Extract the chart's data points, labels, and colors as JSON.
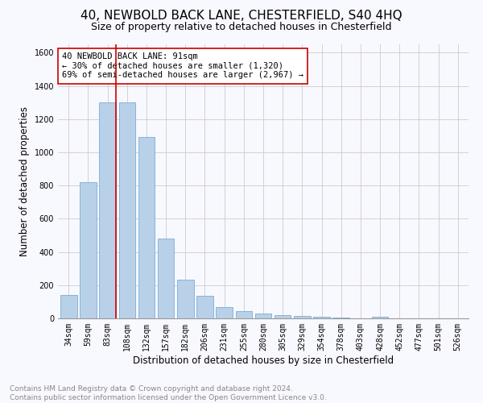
{
  "title": "40, NEWBOLD BACK LANE, CHESTERFIELD, S40 4HQ",
  "subtitle": "Size of property relative to detached houses in Chesterfield",
  "xlabel": "Distribution of detached houses by size in Chesterfield",
  "ylabel": "Number of detached properties",
  "bar_color": "#b8d0e8",
  "bar_edge_color": "#7aaed4",
  "categories": [
    "34sqm",
    "59sqm",
    "83sqm",
    "108sqm",
    "132sqm",
    "157sqm",
    "182sqm",
    "206sqm",
    "231sqm",
    "255sqm",
    "280sqm",
    "305sqm",
    "329sqm",
    "354sqm",
    "378sqm",
    "403sqm",
    "428sqm",
    "452sqm",
    "477sqm",
    "501sqm",
    "526sqm"
  ],
  "values": [
    140,
    820,
    1300,
    1300,
    1090,
    480,
    235,
    135,
    70,
    45,
    30,
    20,
    15,
    10,
    5,
    0,
    8,
    0,
    0,
    0,
    0
  ],
  "ylim": [
    0,
    1650
  ],
  "yticks": [
    0,
    200,
    400,
    600,
    800,
    1000,
    1200,
    1400,
    1600
  ],
  "vline_color": "#cc0000",
  "vline_x_index": 2,
  "annotation_text": "40 NEWBOLD BACK LANE: 91sqm\n← 30% of detached houses are smaller (1,320)\n69% of semi-detached houses are larger (2,967) →",
  "annotation_box_color": "#ffffff",
  "annotation_box_edge": "#cc0000",
  "footnote": "Contains HM Land Registry data © Crown copyright and database right 2024.\nContains public sector information licensed under the Open Government Licence v3.0.",
  "bg_color": "#f8f8ff",
  "grid_color": "#cccccc",
  "title_fontsize": 11,
  "subtitle_fontsize": 9,
  "axis_label_fontsize": 8.5,
  "tick_fontsize": 7,
  "annotation_fontsize": 7.5,
  "footnote_fontsize": 6.5
}
